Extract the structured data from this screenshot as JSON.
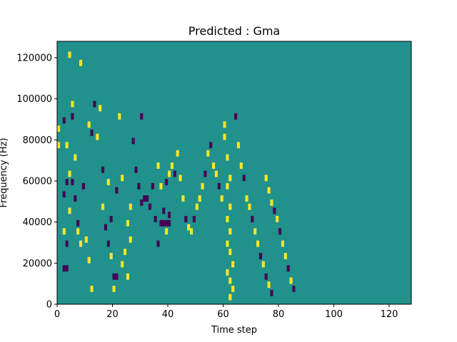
{
  "chart_data": {
    "type": "heatmap",
    "title": "Predicted : Gma",
    "xlabel": "Time step",
    "ylabel": "Frequency (Hz)",
    "xlim": [
      0,
      128
    ],
    "ylim": [
      0,
      128000
    ],
    "x_ticks": [
      0,
      20,
      40,
      60,
      80,
      100,
      120
    ],
    "y_ticks": [
      0,
      20000,
      40000,
      60000,
      80000,
      100000,
      120000
    ],
    "y_tick_labels": [
      "0",
      "20000",
      "40000",
      "60000",
      "80000",
      "100000",
      "120000"
    ],
    "n_time_steps": 128,
    "n_frequency_bins": 128,
    "colormap": "viridis",
    "colors": {
      "background": "#21918c",
      "low": "#440154",
      "high": "#fde725"
    },
    "background_value": 0,
    "cells": [
      [
        0,
        84000,
        1
      ],
      [
        0,
        76000,
        1
      ],
      [
        2,
        88000,
        -1
      ],
      [
        3,
        76000,
        1
      ],
      [
        4,
        120000,
        1
      ],
      [
        5,
        96000,
        1
      ],
      [
        5,
        90000,
        -1
      ],
      [
        4,
        62000,
        1
      ],
      [
        3,
        58000,
        -1
      ],
      [
        2,
        52000,
        -1
      ],
      [
        4,
        44000,
        1
      ],
      [
        2,
        34000,
        1
      ],
      [
        3,
        28000,
        -1
      ],
      [
        2,
        16000,
        -1
      ],
      [
        3,
        16000,
        -1
      ],
      [
        5,
        58000,
        -1
      ],
      [
        6,
        70000,
        1
      ],
      [
        6,
        50000,
        -1
      ],
      [
        7,
        38000,
        -1
      ],
      [
        7,
        34000,
        1
      ],
      [
        8,
        28000,
        1
      ],
      [
        9,
        56000,
        -1
      ],
      [
        10,
        30000,
        1
      ],
      [
        11,
        20000,
        1
      ],
      [
        12,
        6000,
        1
      ],
      [
        11,
        86000,
        1
      ],
      [
        12,
        82000,
        -1
      ],
      [
        13,
        96000,
        -1
      ],
      [
        8,
        116000,
        1
      ],
      [
        14,
        80000,
        1
      ],
      [
        15,
        94000,
        1
      ],
      [
        16,
        64000,
        -1
      ],
      [
        16,
        46000,
        1
      ],
      [
        17,
        36000,
        -1
      ],
      [
        18,
        58000,
        1
      ],
      [
        19,
        40000,
        -1
      ],
      [
        18,
        28000,
        -1
      ],
      [
        19,
        22000,
        1
      ],
      [
        20,
        12000,
        -1
      ],
      [
        21,
        12000,
        -1
      ],
      [
        20,
        6000,
        1
      ],
      [
        21,
        54000,
        -1
      ],
      [
        22,
        90000,
        1
      ],
      [
        23,
        60000,
        1
      ],
      [
        24,
        24000,
        1
      ],
      [
        23,
        18000,
        1
      ],
      [
        25,
        12000,
        1
      ],
      [
        26,
        46000,
        1
      ],
      [
        25,
        38000,
        1
      ],
      [
        26,
        30000,
        1
      ],
      [
        27,
        78000,
        -1
      ],
      [
        28,
        64000,
        -1
      ],
      [
        29,
        56000,
        -1
      ],
      [
        30,
        90000,
        -1
      ],
      [
        30,
        48000,
        -1
      ],
      [
        31,
        50000,
        -1
      ],
      [
        32,
        50000,
        -1
      ],
      [
        33,
        46000,
        -1
      ],
      [
        34,
        56000,
        -1
      ],
      [
        35,
        40000,
        -1
      ],
      [
        36,
        28000,
        -1
      ],
      [
        37,
        38000,
        -1
      ],
      [
        38,
        38000,
        -1
      ],
      [
        39,
        38000,
        -1
      ],
      [
        40,
        38000,
        -1
      ],
      [
        36,
        66000,
        1
      ],
      [
        37,
        56000,
        1
      ],
      [
        38,
        44000,
        -1
      ],
      [
        39,
        34000,
        1
      ],
      [
        40,
        42000,
        -1
      ],
      [
        39,
        58000,
        -1
      ],
      [
        40,
        62000,
        1
      ],
      [
        41,
        66000,
        1
      ],
      [
        42,
        62000,
        -1
      ],
      [
        43,
        72000,
        1
      ],
      [
        44,
        60000,
        1
      ],
      [
        45,
        50000,
        1
      ],
      [
        46,
        40000,
        -1
      ],
      [
        47,
        36000,
        1
      ],
      [
        48,
        34000,
        1
      ],
      [
        49,
        40000,
        -1
      ],
      [
        50,
        46000,
        1
      ],
      [
        51,
        50000,
        1
      ],
      [
        52,
        56000,
        1
      ],
      [
        53,
        62000,
        -1
      ],
      [
        54,
        72000,
        1
      ],
      [
        55,
        76000,
        -1
      ],
      [
        56,
        66000,
        1
      ],
      [
        57,
        62000,
        1
      ],
      [
        58,
        56000,
        -1
      ],
      [
        59,
        50000,
        1
      ],
      [
        60,
        86000,
        1
      ],
      [
        60,
        80000,
        1
      ],
      [
        61,
        70000,
        1
      ],
      [
        62,
        60000,
        1
      ],
      [
        61,
        56000,
        1
      ],
      [
        62,
        46000,
        1
      ],
      [
        61,
        40000,
        1
      ],
      [
        62,
        34000,
        1
      ],
      [
        61,
        28000,
        1
      ],
      [
        62,
        24000,
        1
      ],
      [
        63,
        18000,
        1
      ],
      [
        61,
        14000,
        1
      ],
      [
        62,
        10000,
        1
      ],
      [
        63,
        6000,
        1
      ],
      [
        62,
        2000,
        1
      ],
      [
        64,
        90000,
        -1
      ],
      [
        65,
        76000,
        1
      ],
      [
        66,
        66000,
        1
      ],
      [
        67,
        60000,
        -1
      ],
      [
        68,
        50000,
        1
      ],
      [
        69,
        46000,
        1
      ],
      [
        70,
        40000,
        -1
      ],
      [
        71,
        34000,
        1
      ],
      [
        72,
        28000,
        1
      ],
      [
        73,
        22000,
        -1
      ],
      [
        74,
        18000,
        1
      ],
      [
        75,
        12000,
        -1
      ],
      [
        76,
        8000,
        1
      ],
      [
        77,
        4000,
        -1
      ],
      [
        75,
        60000,
        1
      ],
      [
        76,
        54000,
        1
      ],
      [
        77,
        48000,
        1
      ],
      [
        78,
        44000,
        -1
      ],
      [
        79,
        40000,
        1
      ],
      [
        80,
        34000,
        -1
      ],
      [
        81,
        28000,
        1
      ],
      [
        82,
        22000,
        1
      ],
      [
        83,
        16000,
        -1
      ],
      [
        84,
        10000,
        1
      ],
      [
        85,
        6000,
        -1
      ]
    ]
  }
}
